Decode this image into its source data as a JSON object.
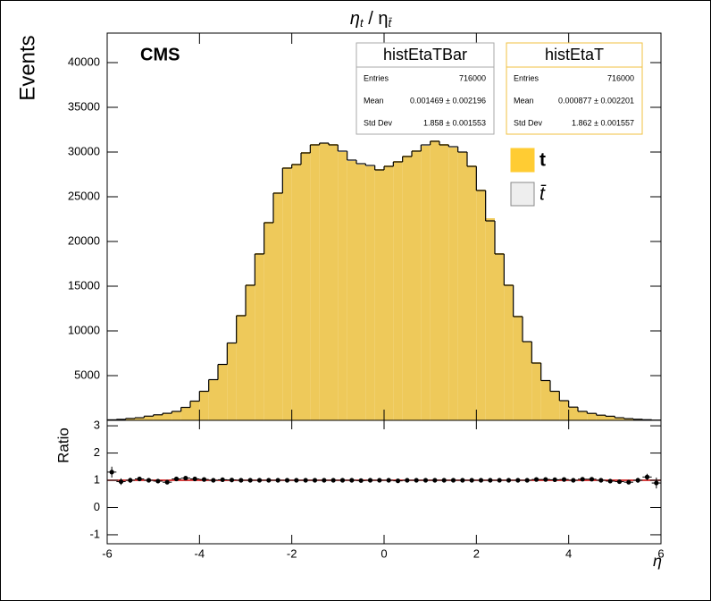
{
  "chart_data": [
    {
      "type": "histogram",
      "title": [
        "η",
        "t",
        " / η",
        "t̄"
      ],
      "ylabel": "Events",
      "annotation": "CMS",
      "bins": [
        -6,
        -5.8,
        -5.6,
        -5.4,
        -5.2,
        -5,
        -4.8,
        -4.6,
        -4.4,
        -4.2,
        -4,
        -3.8,
        -3.6,
        -3.4,
        -3.2,
        -3,
        -2.8,
        -2.6,
        -2.4,
        -2.2,
        -2,
        -1.8,
        -1.6,
        -1.4,
        -1.2,
        -1,
        -0.8,
        -0.6,
        -0.4,
        -0.2,
        0,
        0.2,
        0.4,
        0.6,
        0.8,
        1,
        1.2,
        1.4,
        1.6,
        1.8,
        2,
        2.2,
        2.4,
        2.6,
        2.8,
        3,
        3.2,
        3.4,
        3.6,
        3.8,
        4,
        4.2,
        4.4,
        4.6,
        4.8,
        5,
        5.2,
        5.4,
        5.6,
        5.8,
        6
      ],
      "series": [
        {
          "name": "t",
          "color": "#eec95a",
          "legend_color": "#ffcc33",
          "values": [
            50,
            100,
            200,
            300,
            450,
            600,
            800,
            1000,
            1500,
            2200,
            3300,
            4500,
            6300,
            8700,
            11800,
            15200,
            18700,
            22200,
            25500,
            28300,
            28700,
            30000,
            30900,
            31000,
            30900,
            30000,
            29000,
            28600,
            28400,
            28100,
            28500,
            29000,
            29600,
            30200,
            30700,
            31300,
            30900,
            30500,
            30000,
            28500,
            25800,
            22600,
            18700,
            15200,
            11700,
            8800,
            6500,
            4500,
            3300,
            2200,
            1500,
            1000,
            800,
            600,
            450,
            300,
            200,
            120,
            60,
            30
          ]
        },
        {
          "name": "t̄",
          "color": "#000000",
          "legend_color": "#eeeeee",
          "values": [
            60,
            110,
            210,
            290,
            470,
            620,
            790,
            1000,
            1450,
            2150,
            3250,
            4550,
            6250,
            8650,
            11700,
            15100,
            18600,
            22100,
            25400,
            28200,
            28600,
            29900,
            30800,
            31000,
            30800,
            30100,
            29100,
            28700,
            28500,
            28000,
            28400,
            28900,
            29500,
            30100,
            30800,
            31200,
            30800,
            30600,
            30000,
            28400,
            25700,
            22300,
            18600,
            15100,
            11600,
            8800,
            6400,
            4450,
            3250,
            2200,
            1480,
            1000,
            780,
            580,
            460,
            290,
            190,
            120,
            70,
            25
          ]
        }
      ],
      "xlim": [
        -6,
        6
      ],
      "xticks": [
        -6,
        -4,
        -2,
        0,
        2,
        4,
        6
      ],
      "ylim": [
        0,
        43300
      ],
      "yticks": [
        5000,
        10000,
        15000,
        20000,
        25000,
        30000,
        35000,
        40000
      ],
      "stats_boxes": [
        {
          "title": "histEtaTBar",
          "border": "#aaaaaa",
          "rows": [
            [
              "Entries",
              "716000"
            ],
            [
              "Mean",
              "0.001469 ± 0.002196"
            ],
            [
              "Std Dev",
              "1.858 ± 0.001553"
            ]
          ]
        },
        {
          "title": "histEtaT",
          "border": "#f0c040",
          "rows": [
            [
              "Entries",
              "716000"
            ],
            [
              "Mean",
              "0.000877 ± 0.002201"
            ],
            [
              "Std Dev",
              "1.862 ± 0.001557"
            ]
          ]
        }
      ]
    },
    {
      "type": "ratio",
      "ylabel": "Ratio",
      "xlabel": "η",
      "x": [
        -5.9,
        -5.7,
        -5.5,
        -5.3,
        -5.1,
        -4.9,
        -4.7,
        -4.5,
        -4.3,
        -4.1,
        -3.9,
        -3.7,
        -3.5,
        -3.3,
        -3.1,
        -2.9,
        -2.7,
        -2.5,
        -2.3,
        -2.1,
        -1.9,
        -1.7,
        -1.5,
        -1.3,
        -1.1,
        -0.9,
        -0.7,
        -0.5,
        -0.3,
        -0.1,
        0.1,
        0.3,
        0.5,
        0.7,
        0.9,
        1.1,
        1.3,
        1.5,
        1.7,
        1.9,
        2.1,
        2.3,
        2.5,
        2.7,
        2.9,
        3.1,
        3.3,
        3.5,
        3.7,
        3.9,
        4.1,
        4.3,
        4.5,
        4.7,
        4.9,
        5.1,
        5.3,
        5.5,
        5.7,
        5.9
      ],
      "values": [
        1.3,
        0.95,
        1.0,
        1.05,
        1.0,
        0.97,
        0.93,
        1.05,
        1.08,
        1.05,
        1.03,
        1.0,
        1.02,
        1.01,
        1.0,
        1.0,
        1.0,
        1.0,
        1.0,
        1.0,
        1.0,
        1.0,
        1.0,
        1.0,
        1.0,
        1.0,
        1.0,
        0.99,
        1.0,
        1.0,
        1.0,
        0.98,
        1.0,
        1.0,
        1.0,
        1.0,
        1.0,
        1.0,
        1.0,
        1.0,
        1.0,
        1.0,
        1.0,
        1.0,
        1.0,
        1.0,
        1.03,
        1.03,
        1.02,
        1.03,
        1.0,
        1.04,
        1.04,
        1.0,
        0.97,
        0.95,
        0.93,
        1.0,
        1.12,
        0.9
      ],
      "errors": [
        0.2,
        0.12,
        0.09,
        0.07,
        0.06,
        0.05,
        0.045,
        0.04,
        0.03,
        0.025,
        0.02,
        0.017,
        0.015,
        0.012,
        0.01,
        0.01,
        0.01,
        0.01,
        0.01,
        0.01,
        0.01,
        0.01,
        0.01,
        0.01,
        0.01,
        0.01,
        0.01,
        0.01,
        0.01,
        0.01,
        0.01,
        0.01,
        0.01,
        0.01,
        0.01,
        0.01,
        0.01,
        0.01,
        0.01,
        0.01,
        0.01,
        0.01,
        0.01,
        0.01,
        0.01,
        0.01,
        0.012,
        0.015,
        0.017,
        0.02,
        0.025,
        0.03,
        0.04,
        0.045,
        0.05,
        0.06,
        0.07,
        0.09,
        0.12,
        0.2
      ],
      "reference_line": {
        "value": 1,
        "color": "#cc0000"
      },
      "xlim": [
        -6,
        6
      ],
      "xticks": [
        -6,
        -4,
        -2,
        0,
        2,
        4,
        6
      ],
      "ylim": [
        -1.33,
        3.2
      ],
      "yticks": [
        -1,
        0,
        1,
        2,
        3
      ]
    }
  ]
}
